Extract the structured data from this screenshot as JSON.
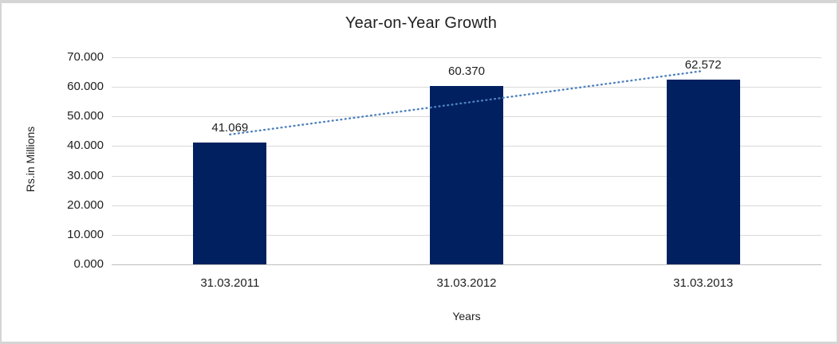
{
  "chart_data": {
    "type": "bar",
    "title": "Year-on-Year Growth",
    "categories": [
      "31.03.2011",
      "31.03.2012",
      "31.03.2013"
    ],
    "values": [
      41.069,
      60.37,
      62.572
    ],
    "data_labels": [
      "41.069",
      "60.370",
      "62.572"
    ],
    "xlabel": "Years",
    "ylabel": "Rs.in Millions",
    "ylim": [
      0,
      70
    ],
    "ytick_step": 10,
    "ytick_labels": [
      "0.000",
      "10.000",
      "20.000",
      "30.000",
      "40.000",
      "50.000",
      "60.000",
      "70.000"
    ],
    "grid": true,
    "legend": "none",
    "bar_color": "#002060",
    "trendline": {
      "type": "linear",
      "style": "dotted",
      "color": "#4f81bd"
    },
    "background": "#ffffff",
    "border_color": "#d5d5d5"
  }
}
